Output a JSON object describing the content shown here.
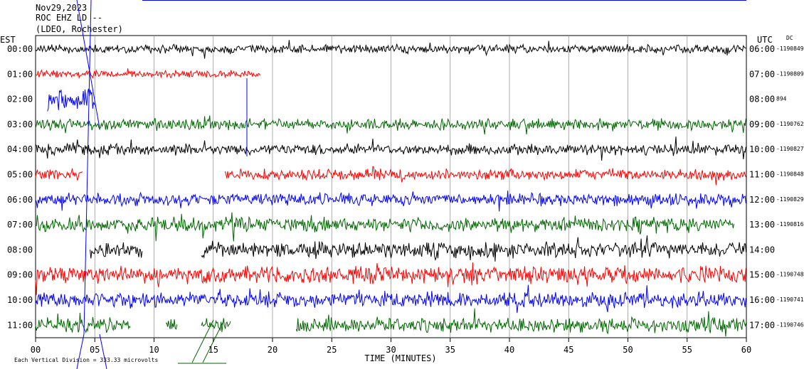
{
  "header": {
    "date": "Nov29,2023",
    "station": "ROC EHZ LD --",
    "network": "(LDEO, Rochester)"
  },
  "left_tz": "EST",
  "right_tz": "UTC",
  "dc_label": "DC",
  "footer_note": "Each Vertical Division = 333.33 microvolts",
  "colors": {
    "black": "#000000",
    "red": "#ff0000",
    "blue": "#0000ff",
    "green": "#006600"
  },
  "chart_data": {
    "type": "line",
    "title": "",
    "xlabel": "TIME (MINUTES)",
    "xlim": [
      0,
      60
    ],
    "x_ticks": [
      "00",
      "05",
      "10",
      "15",
      "20",
      "25",
      "30",
      "35",
      "40",
      "45",
      "50",
      "55",
      "60"
    ],
    "rows": [
      {
        "est": "00:00",
        "utc": "06:00",
        "dc": "-1190849",
        "color": "black",
        "segments": [
          [
            0,
            60
          ]
        ],
        "amp": 7
      },
      {
        "est": "01:00",
        "utc": "07:00",
        "dc": "-1190809",
        "color": "red",
        "segments": [
          [
            0,
            19
          ]
        ],
        "amp": 6
      },
      {
        "est": "02:00",
        "utc": "08:00",
        "dc": "894",
        "color": "blue",
        "segments": [
          [
            1,
            5
          ]
        ],
        "amp": 18
      },
      {
        "est": "03:00",
        "utc": "09:00",
        "dc": "-1190762",
        "color": "green",
        "segments": [
          [
            0,
            60
          ]
        ],
        "amp": 9
      },
      {
        "est": "04:00",
        "utc": "10:00",
        "dc": "-1190827",
        "color": "black",
        "segments": [
          [
            0,
            60
          ]
        ],
        "amp": 9
      },
      {
        "est": "05:00",
        "utc": "11:00",
        "dc": "-1190848",
        "color": "red",
        "segments": [
          [
            0,
            4
          ],
          [
            16,
            60
          ]
        ],
        "amp": 9
      },
      {
        "est": "06:00",
        "utc": "12:00",
        "dc": "-1190829",
        "color": "blue",
        "segments": [
          [
            0,
            60
          ]
        ],
        "amp": 10
      },
      {
        "est": "07:00",
        "utc": "13:00",
        "dc": "-1190816",
        "color": "green",
        "segments": [
          [
            0,
            59
          ]
        ],
        "amp": 12
      },
      {
        "est": "08:00",
        "utc": "14:00",
        "dc": "",
        "color": "black",
        "segments": [
          [
            4.6,
            9
          ],
          [
            14,
            60
          ]
        ],
        "amp": 13
      },
      {
        "est": "09:00",
        "utc": "15:00",
        "dc": "-1190748",
        "color": "red",
        "segments": [
          [
            0,
            60
          ]
        ],
        "amp": 14
      },
      {
        "est": "10:00",
        "utc": "16:00",
        "dc": "-1190741",
        "color": "blue",
        "segments": [
          [
            0,
            60
          ]
        ],
        "amp": 13
      },
      {
        "est": "11:00",
        "utc": "17:00",
        "dc": "-1190746",
        "color": "green",
        "segments": [
          [
            0,
            8
          ],
          [
            11,
            12
          ],
          [
            14,
            16.5
          ],
          [
            22,
            60
          ]
        ],
        "amp": 12
      }
    ]
  }
}
